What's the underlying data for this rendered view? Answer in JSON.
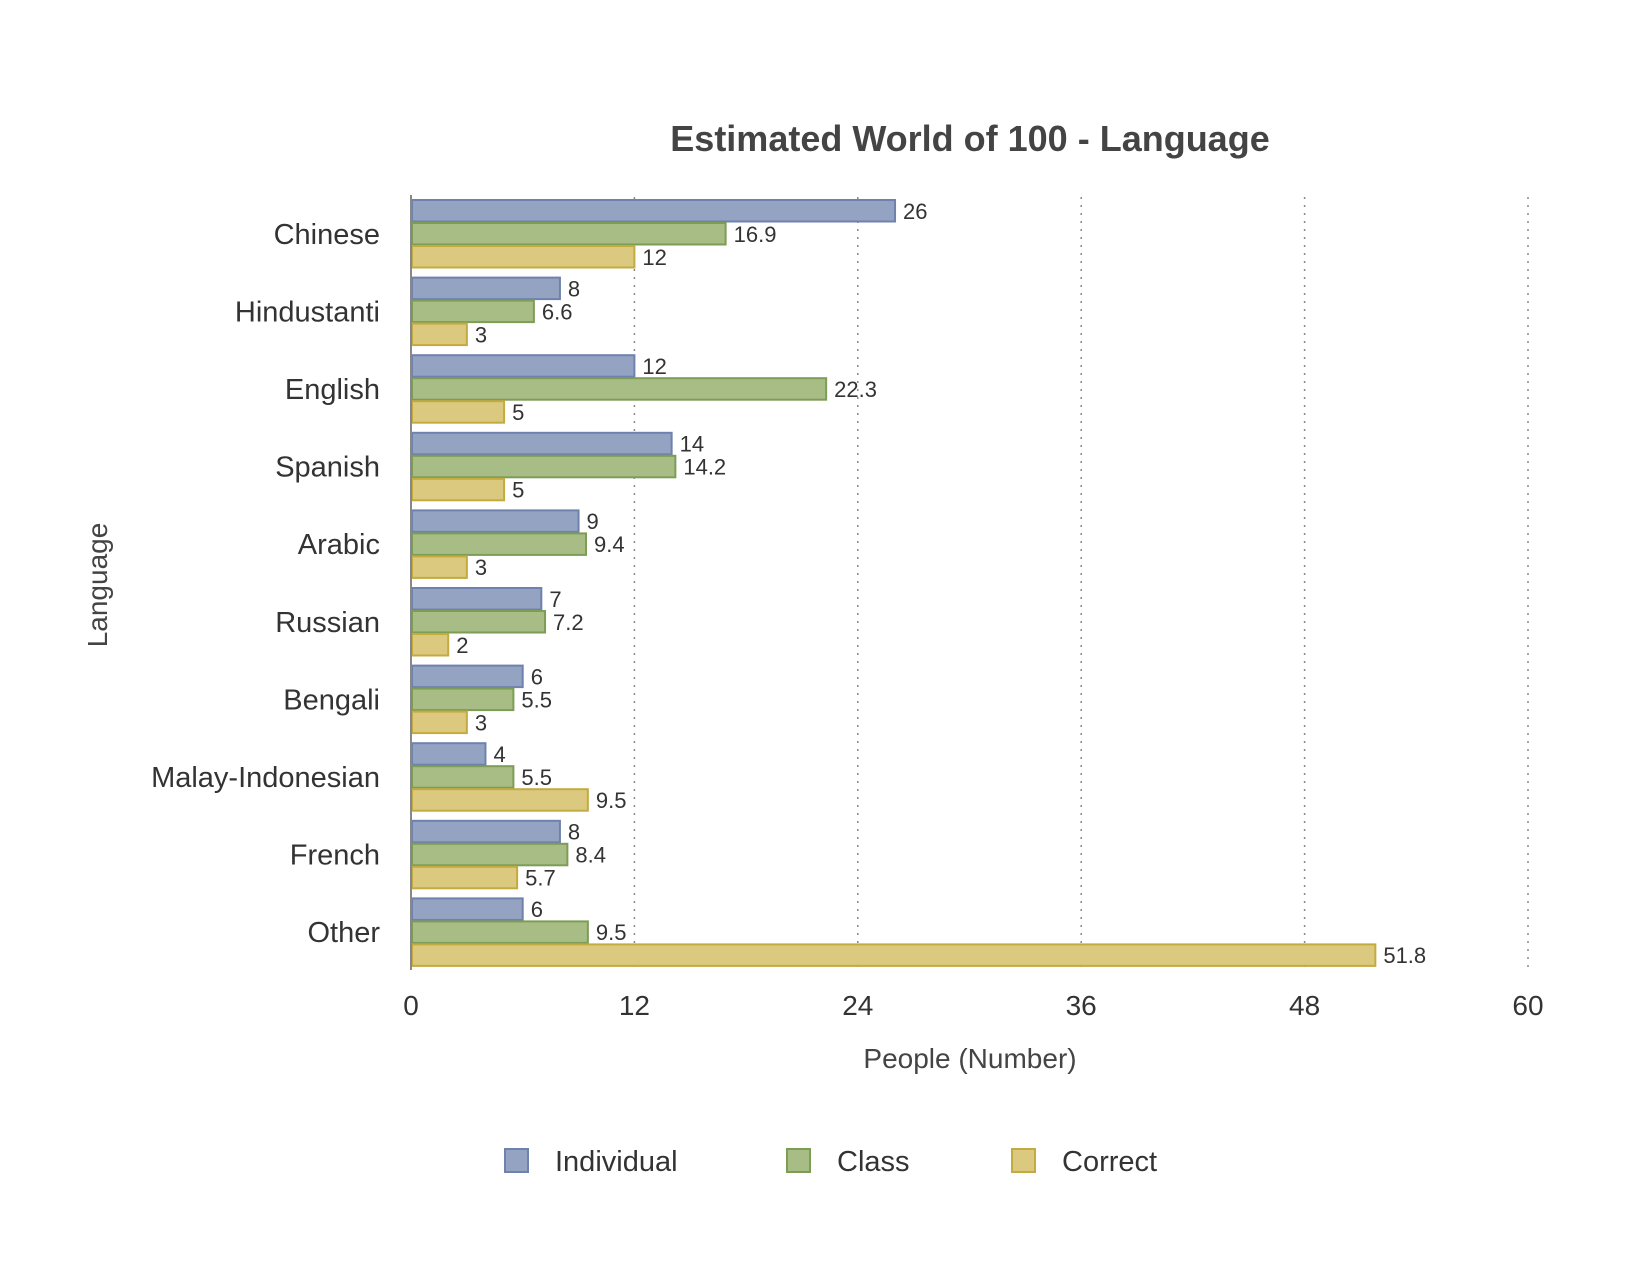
{
  "chart_data": {
    "type": "bar",
    "orientation": "horizontal",
    "title": "Estimated World of 100 - Language",
    "xlabel": "People (Number)",
    "ylabel": "Language",
    "xlim": [
      0,
      60
    ],
    "xticks": [
      0,
      12,
      24,
      36,
      48,
      60
    ],
    "grid": "vertical dotted",
    "legend_position": "bottom",
    "categories": [
      "Chinese",
      "Hindustanti",
      "English",
      "Spanish",
      "Arabic",
      "Russian",
      "Bengali",
      "Malay-Indonesian",
      "French",
      "Other"
    ],
    "series": [
      {
        "name": "Individual",
        "color": "#94a3c2",
        "stroke": "#6f82ad",
        "values": [
          26,
          8,
          12,
          14,
          9,
          7,
          6,
          4,
          8,
          6
        ]
      },
      {
        "name": "Class",
        "color": "#a8bd85",
        "stroke": "#7d9c55",
        "values": [
          16.9,
          6.6,
          22.3,
          14.2,
          9.4,
          7.2,
          5.5,
          5.5,
          8.4,
          9.5
        ]
      },
      {
        "name": "Correct",
        "color": "#dbc97f",
        "stroke": "#c4ab3f",
        "values": [
          12,
          3,
          5,
          5,
          3,
          2,
          3,
          9.5,
          5.7,
          51.8
        ]
      }
    ]
  }
}
